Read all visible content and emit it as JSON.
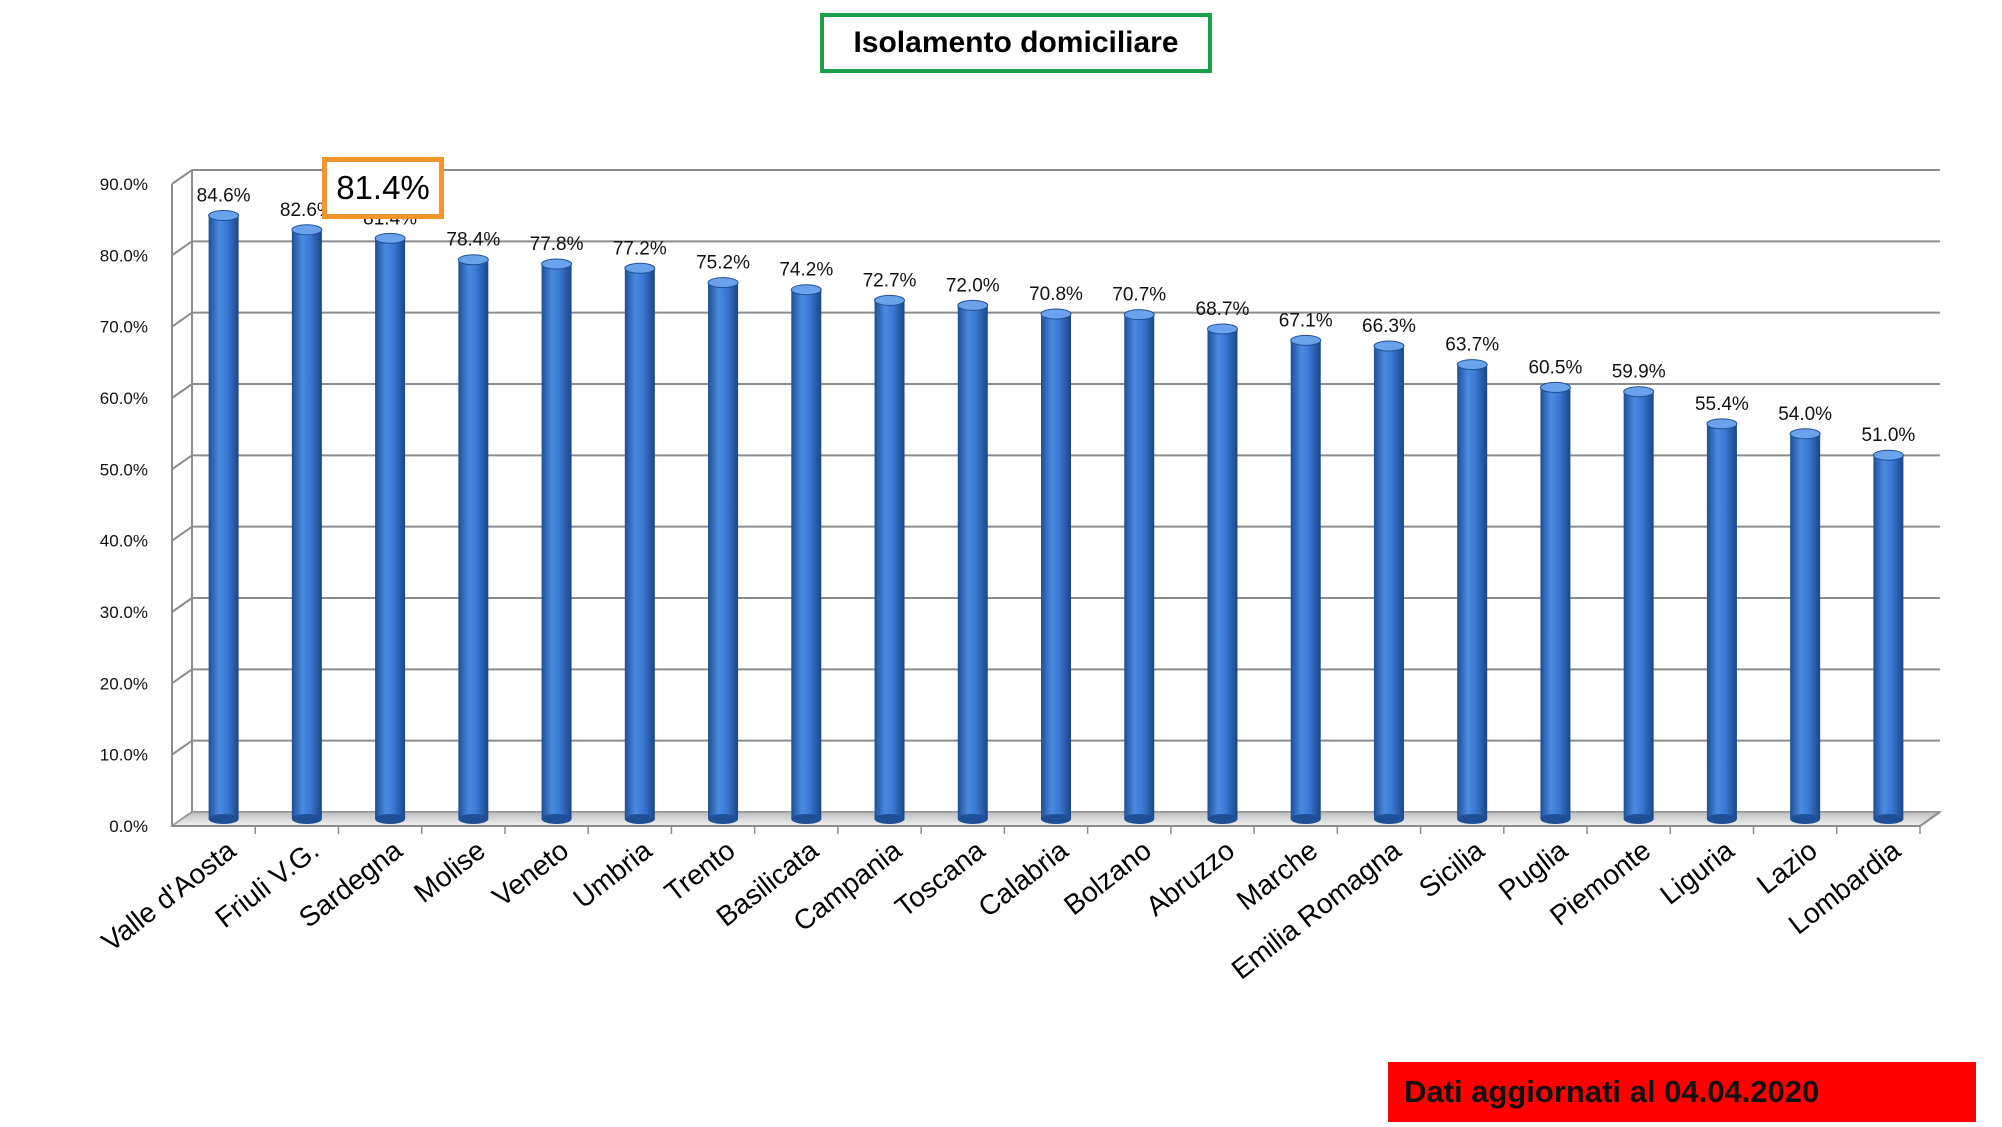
{
  "title": "Isolamento domiciliare",
  "update_note": "Dati aggiornati al 04.04.2020",
  "highlight": {
    "label": "81.4%",
    "category": "Sardegna",
    "border_color": "#f5962d"
  },
  "colors": {
    "bar": "#2f6fc6",
    "bar_dark": "#1f4f96",
    "bar_light": "#6aa3ec",
    "title_border": "#1aa04a",
    "update_bg": "#ff0000",
    "grid": "#8c8c8c"
  },
  "chart_data": {
    "type": "bar",
    "title": "Isolamento domiciliare",
    "xlabel": "",
    "ylabel": "",
    "ylim": [
      0,
      90
    ],
    "yticks": [
      0,
      10,
      20,
      30,
      40,
      50,
      60,
      70,
      80,
      90
    ],
    "ytick_labels": [
      "0.0%",
      "10.0%",
      "20.0%",
      "30.0%",
      "40.0%",
      "50.0%",
      "60.0%",
      "70.0%",
      "80.0%",
      "90.0%"
    ],
    "grid": true,
    "legend": "none",
    "categories": [
      "Valle d'Aosta",
      "Friuli V.G.",
      "Sardegna",
      "Molise",
      "Veneto",
      "Umbria",
      "Trento",
      "Basilicata",
      "Campania",
      "Toscana",
      "Calabria",
      "Bolzano",
      "Abruzzo",
      "Marche",
      "Emilia Romagna",
      "Sicilia",
      "Puglia",
      "Piemonte",
      "Liguria",
      "Lazio",
      "Lombardia"
    ],
    "values": [
      84.6,
      82.6,
      81.4,
      78.4,
      77.8,
      77.2,
      75.2,
      74.2,
      72.7,
      72.0,
      70.8,
      70.7,
      68.7,
      67.1,
      66.3,
      63.7,
      60.5,
      59.9,
      55.4,
      54.0,
      51.0
    ],
    "value_labels": [
      "84.6%",
      "82.6%",
      "81.4%",
      "78.4%",
      "77.8%",
      "77.2%",
      "75.2%",
      "74.2%",
      "72.7%",
      "72.0%",
      "70.8%",
      "70.7%",
      "68.7%",
      "67.1%",
      "66.3%",
      "63.7%",
      "60.5%",
      "59.9%",
      "55.4%",
      "54.0%",
      "51.0%"
    ]
  }
}
